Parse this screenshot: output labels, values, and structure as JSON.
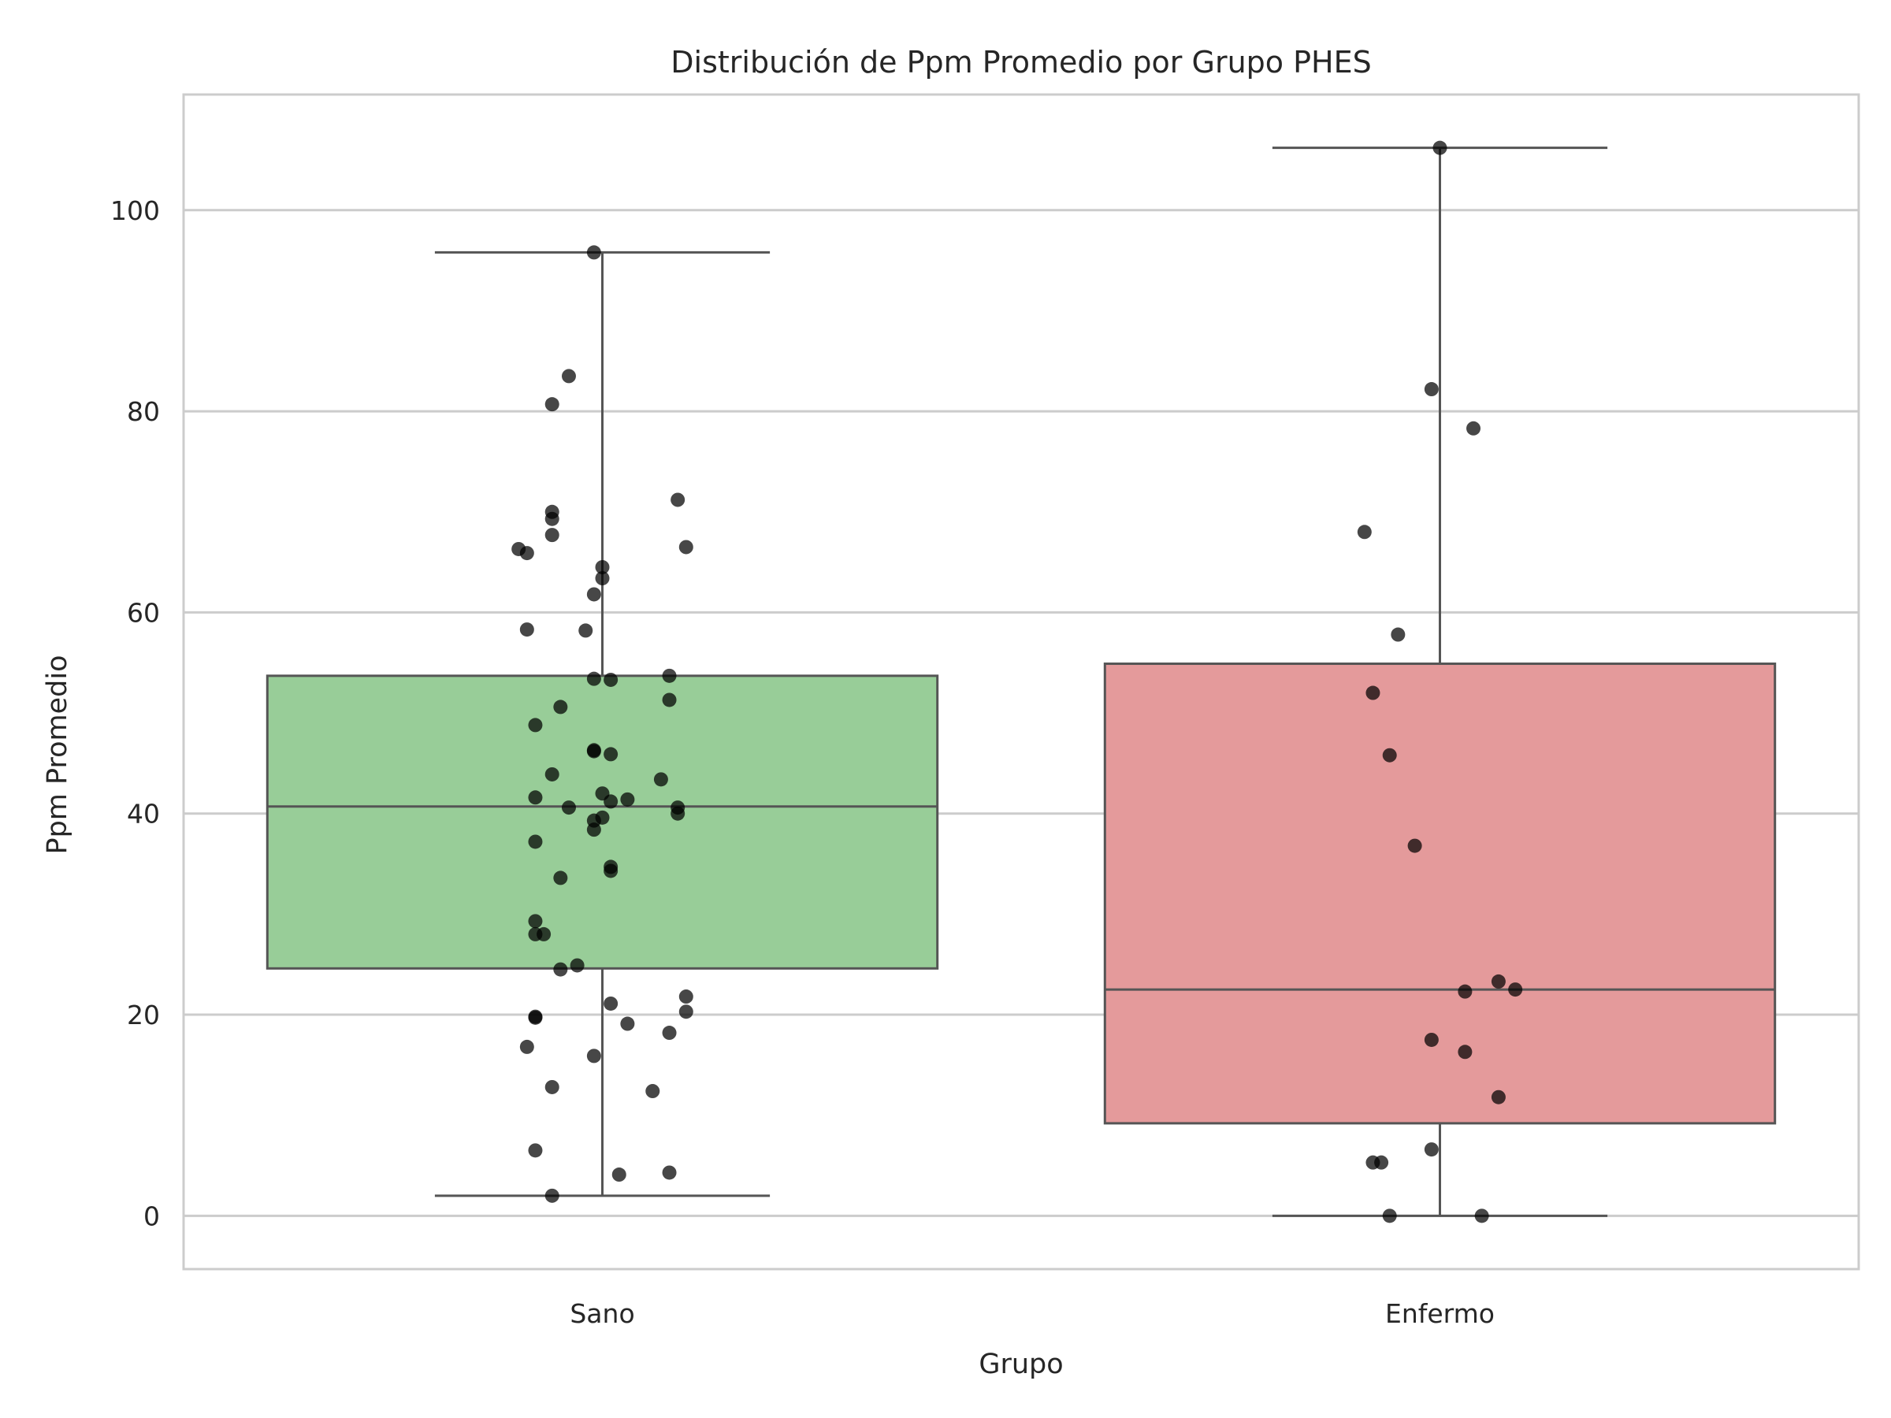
{
  "chart_data": {
    "type": "box",
    "title": "Distribución de Ppm Promedio por Grupo PHES",
    "xlabel": "Grupo",
    "ylabel": "Ppm Promedio",
    "categories": [
      "Sano",
      "Enfermo"
    ],
    "ylim": [
      -5.3,
      111.5
    ],
    "yticks": [
      "0",
      "20",
      "40",
      "60",
      "80",
      "100"
    ],
    "grid": true,
    "legend": "none",
    "colors": {
      "Sano": "#98cd98",
      "Enfermo": "#e49a9b",
      "edge": "#555555",
      "point": "#000000",
      "grid": "#cccccc",
      "frame": "#cccccc"
    },
    "boxes": [
      {
        "category": "Sano",
        "whislo": 2.0,
        "q1": 24.6,
        "med": 40.7,
        "q3": 53.7,
        "whishi": 95.8
      },
      {
        "category": "Enfermo",
        "whislo": 0.0,
        "q1": 9.2,
        "med": 22.5,
        "q3": 54.9,
        "whishi": 106.2
      }
    ],
    "points": [
      {
        "category": "Sano",
        "y": [
          95.8,
          83.5,
          80.7,
          71.2,
          70.0,
          69.3,
          67.7,
          66.5,
          66.3,
          65.9,
          64.5,
          63.4,
          61.8,
          58.3,
          58.2,
          53.7,
          53.4,
          53.3,
          51.3,
          50.6,
          48.8,
          46.2,
          46.3,
          45.9,
          43.9,
          43.4,
          42.0,
          41.6,
          41.4,
          41.2,
          40.6,
          40.6,
          40.0,
          39.6,
          39.3,
          38.4,
          37.2,
          34.7,
          34.3,
          33.6,
          29.3,
          28.0,
          28.0,
          24.9,
          24.5,
          21.8,
          21.1,
          20.3,
          19.8,
          19.7,
          19.1,
          18.2,
          16.8,
          15.9,
          12.8,
          12.4,
          6.5,
          4.3,
          4.1,
          2.0
        ],
        "jitter": [
          -0.01,
          -0.04,
          -0.06,
          0.09,
          -0.06,
          -0.06,
          -0.06,
          0.1,
          -0.1,
          -0.09,
          0.0,
          0.0,
          -0.01,
          -0.09,
          -0.02,
          0.08,
          -0.01,
          0.01,
          0.08,
          -0.05,
          -0.08,
          -0.01,
          -0.01,
          0.01,
          -0.06,
          0.07,
          0.0,
          -0.08,
          0.03,
          0.01,
          0.09,
          -0.04,
          0.09,
          0.0,
          -0.01,
          -0.01,
          -0.08,
          0.01,
          0.01,
          -0.05,
          -0.08,
          -0.08,
          -0.07,
          -0.03,
          -0.05,
          0.1,
          0.01,
          0.1,
          -0.08,
          -0.08,
          0.03,
          0.08,
          -0.09,
          -0.01,
          -0.06,
          0.06,
          -0.08,
          0.08,
          0.02,
          -0.06
        ]
      },
      {
        "category": "Enfermo",
        "y": [
          106.2,
          82.2,
          78.3,
          68.0,
          57.8,
          52.0,
          45.8,
          36.8,
          23.3,
          22.5,
          22.3,
          17.5,
          16.3,
          11.8,
          6.6,
          5.3,
          5.3,
          0.0,
          0.0
        ],
        "jitter": [
          0.0,
          -0.01,
          0.04,
          -0.09,
          -0.05,
          -0.08,
          -0.06,
          -0.03,
          0.07,
          0.09,
          0.03,
          -0.01,
          0.03,
          0.07,
          -0.01,
          -0.07,
          -0.08,
          -0.06,
          0.05
        ]
      }
    ]
  }
}
